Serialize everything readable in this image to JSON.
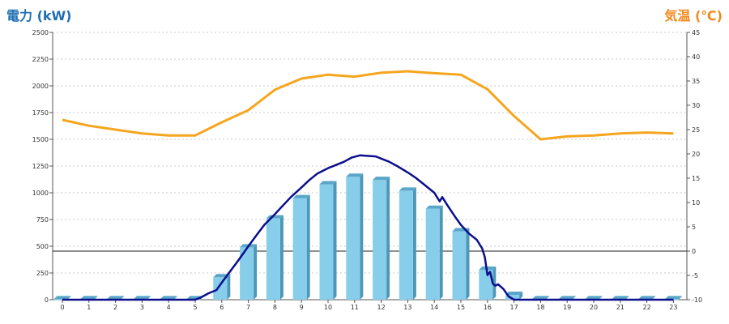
{
  "chart_data": {
    "type": "bar",
    "title": "",
    "left_axis_label": "電力 (kW)",
    "right_axis_label": "気温 (℃)",
    "categories": [
      "0",
      "1",
      "2",
      "3",
      "4",
      "5",
      "6",
      "7",
      "8",
      "9",
      "10",
      "11",
      "12",
      "13",
      "14",
      "15",
      "16",
      "17",
      "18",
      "19",
      "20",
      "21",
      "22",
      "23"
    ],
    "y_left": {
      "min": 0,
      "max": 2500,
      "ticks": [
        0,
        250,
        500,
        750,
        1000,
        1250,
        1500,
        1750,
        2000,
        2250,
        2500
      ]
    },
    "y_right": {
      "min": -10,
      "max": 45,
      "ticks": [
        -10,
        -5,
        0,
        5,
        10,
        15,
        20,
        25,
        30,
        35,
        40,
        45
      ]
    },
    "reference_line_right": 0,
    "grid": true,
    "bars": {
      "axis": "left",
      "color": "#87ceeb",
      "values": [
        5,
        5,
        5,
        5,
        5,
        5,
        210,
        490,
        760,
        950,
        1080,
        1150,
        1120,
        1020,
        850,
        640,
        280,
        45,
        5,
        5,
        5,
        5,
        5,
        5
      ]
    },
    "power_line": {
      "axis": "left",
      "color": "#0b0f8c",
      "x": [
        0,
        1,
        2,
        3,
        4,
        5,
        5.2,
        5.5,
        5.8,
        6,
        6.3,
        6.6,
        7,
        7.3,
        7.6,
        8,
        8.3,
        8.6,
        9,
        9.3,
        9.6,
        10,
        10.3,
        10.6,
        10.9,
        11.2,
        11.5,
        11.8,
        12,
        12.3,
        12.6,
        13,
        13.3,
        13.6,
        14,
        14.1,
        14.2,
        14.3,
        14.5,
        14.8,
        15,
        15.3,
        15.6,
        15.8,
        15.9,
        16,
        16.1,
        16.2,
        16.3,
        16.4,
        16.6,
        16.8,
        17,
        17.3,
        18,
        19,
        20,
        21,
        22,
        23
      ],
      "y": [
        0,
        0,
        0,
        0,
        0,
        0,
        20,
        60,
        90,
        160,
        260,
        360,
        500,
        600,
        700,
        800,
        880,
        960,
        1050,
        1120,
        1180,
        1230,
        1260,
        1290,
        1330,
        1350,
        1345,
        1340,
        1320,
        1290,
        1250,
        1190,
        1140,
        1080,
        1000,
        960,
        920,
        960,
        880,
        770,
        700,
        620,
        560,
        480,
        400,
        230,
        260,
        150,
        130,
        145,
        100,
        30,
        0,
        0,
        0,
        0,
        0,
        0,
        0,
        0
      ]
    },
    "temperature_line": {
      "axis": "right",
      "color": "#f5a51e",
      "x": [
        0,
        1,
        2,
        3,
        4,
        5,
        6,
        7,
        8,
        9,
        10,
        11,
        12,
        13,
        14,
        15,
        16,
        17,
        18,
        19,
        20,
        21,
        22,
        23
      ],
      "y": [
        27,
        25.8,
        25,
        24.2,
        23.8,
        23.8,
        26.5,
        29,
        33.2,
        35.5,
        36.3,
        35.9,
        36.7,
        37,
        36.6,
        36.3,
        33.3,
        27.8,
        23,
        23.6,
        23.8,
        24.2,
        24.4,
        24.2
      ]
    }
  }
}
